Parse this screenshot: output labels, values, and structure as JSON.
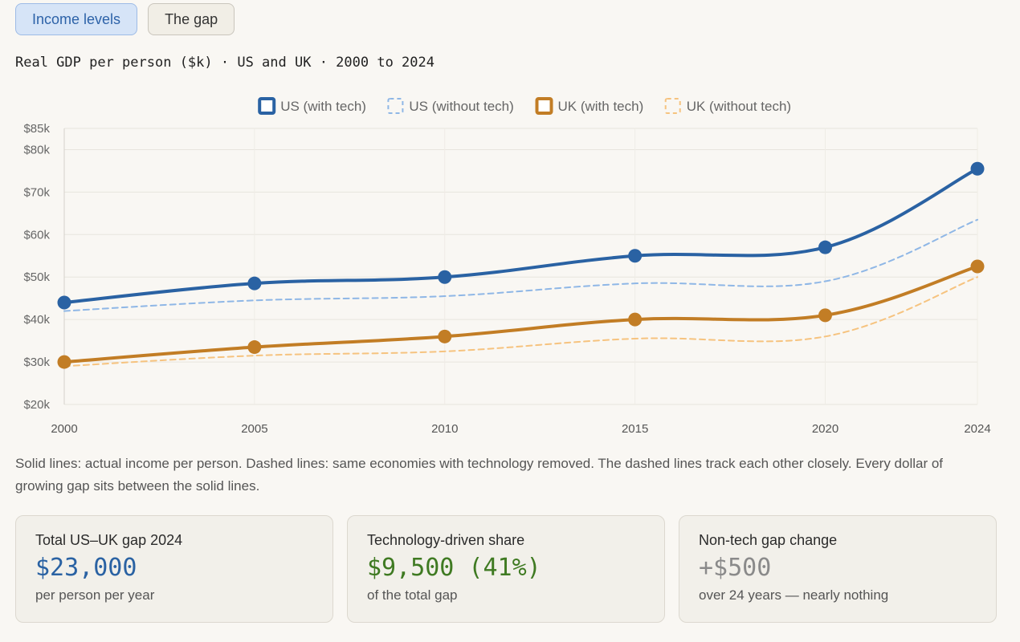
{
  "tabs": [
    {
      "label": "Income levels",
      "active": true
    },
    {
      "label": "The gap",
      "active": false
    }
  ],
  "chart_title": "Real GDP per person ($k) · US and UK · 2000 to 2024",
  "chart_data": {
    "type": "line",
    "title": "Real GDP per person ($k) · US and UK · 2000 to 2024",
    "x": [
      2000,
      2005,
      2010,
      2015,
      2020,
      2024
    ],
    "ylim": [
      20,
      85
    ],
    "yticks": [
      20,
      30,
      40,
      50,
      60,
      70,
      80,
      85
    ],
    "ytick_labels": [
      "$20k",
      "$30k",
      "$40k",
      "$50k",
      "$60k",
      "$70k",
      "$80k",
      "$85k"
    ],
    "xtick_labels": [
      "2000",
      "2005",
      "2010",
      "2015",
      "2020",
      "2024"
    ],
    "grid": true,
    "legend_position": "top-center",
    "series": [
      {
        "name": "US (with tech)",
        "values": [
          44,
          48.5,
          50,
          55,
          57,
          75.5
        ],
        "color": "#2a62a3",
        "style": "solid",
        "markers": true
      },
      {
        "name": "US (without tech)",
        "values": [
          42,
          44.5,
          45.5,
          48.5,
          49,
          63.5
        ],
        "color": "#8fb7e6",
        "style": "dashed",
        "markers": false
      },
      {
        "name": "UK (with tech)",
        "values": [
          30,
          33.5,
          36,
          40,
          41,
          52.5
        ],
        "color": "#c27d25",
        "style": "solid",
        "markers": true
      },
      {
        "name": "UK (without tech)",
        "values": [
          29,
          31.5,
          32.5,
          35.5,
          36,
          50
        ],
        "color": "#f6c37f",
        "style": "dashed",
        "markers": false
      }
    ]
  },
  "caption": "Solid lines: actual income per person. Dashed lines: same economies with technology removed. The dashed lines track each other closely. Every dollar of growing gap sits between the solid lines.",
  "cards": [
    {
      "label": "Total US–UK gap 2024",
      "value": "$23,000",
      "sub": "per person per year",
      "color": "#2a62a3"
    },
    {
      "label": "Technology-driven share",
      "value": "$9,500 (41%)",
      "sub": "of the total gap",
      "color": "#3f7a22"
    },
    {
      "label": "Non-tech gap change",
      "value": "+$500",
      "sub": "over 24 years — nearly nothing",
      "color": "#8a8a8a"
    }
  ]
}
